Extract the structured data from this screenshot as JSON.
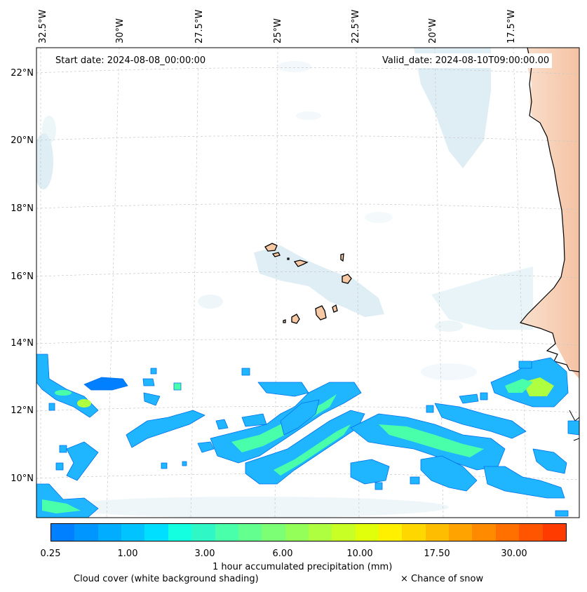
{
  "map": {
    "start_label": "Start date: 2024-08-08_00:00:00",
    "valid_label": "Valid_date: 2024-08-10T09:00:00.00",
    "lon_labels": [
      "32.5°W",
      "30°W",
      "27.5°W",
      "25°W",
      "22.5°W",
      "20°W",
      "17.5°W"
    ],
    "lat_labels": [
      "22°N",
      "20°N",
      "18°N",
      "16°N",
      "14°N",
      "12°N",
      "10°N"
    ]
  },
  "colorbar": {
    "label": "1 hour accumulated precipitation (mm)",
    "tick_labels": [
      "0.25",
      "1.00",
      "3.00",
      "6.00",
      "10.00",
      "17.50",
      "30.00"
    ],
    "colors": [
      "#0080ff",
      "#0096ff",
      "#00adff",
      "#00c3ff",
      "#00dfff",
      "#14ffe0",
      "#2ff7c5",
      "#4affaa",
      "#63ff8f",
      "#7cff74",
      "#95ff5a",
      "#aeff40",
      "#c8ff25",
      "#e1ff0a",
      "#fff000",
      "#ffd700",
      "#ffbd00",
      "#ffa300",
      "#ff8a00",
      "#ff7000",
      "#ff5500",
      "#ff3b00"
    ]
  },
  "legend": {
    "cloud_label": "Cloud cover (white background shading)",
    "snow_label": "× Chance of snow"
  },
  "colors": {
    "cloud_tint": "#d4e9f1",
    "land_tint": "#f6c8a4",
    "coastline": "#000000",
    "grid": "#c8c8c8"
  }
}
